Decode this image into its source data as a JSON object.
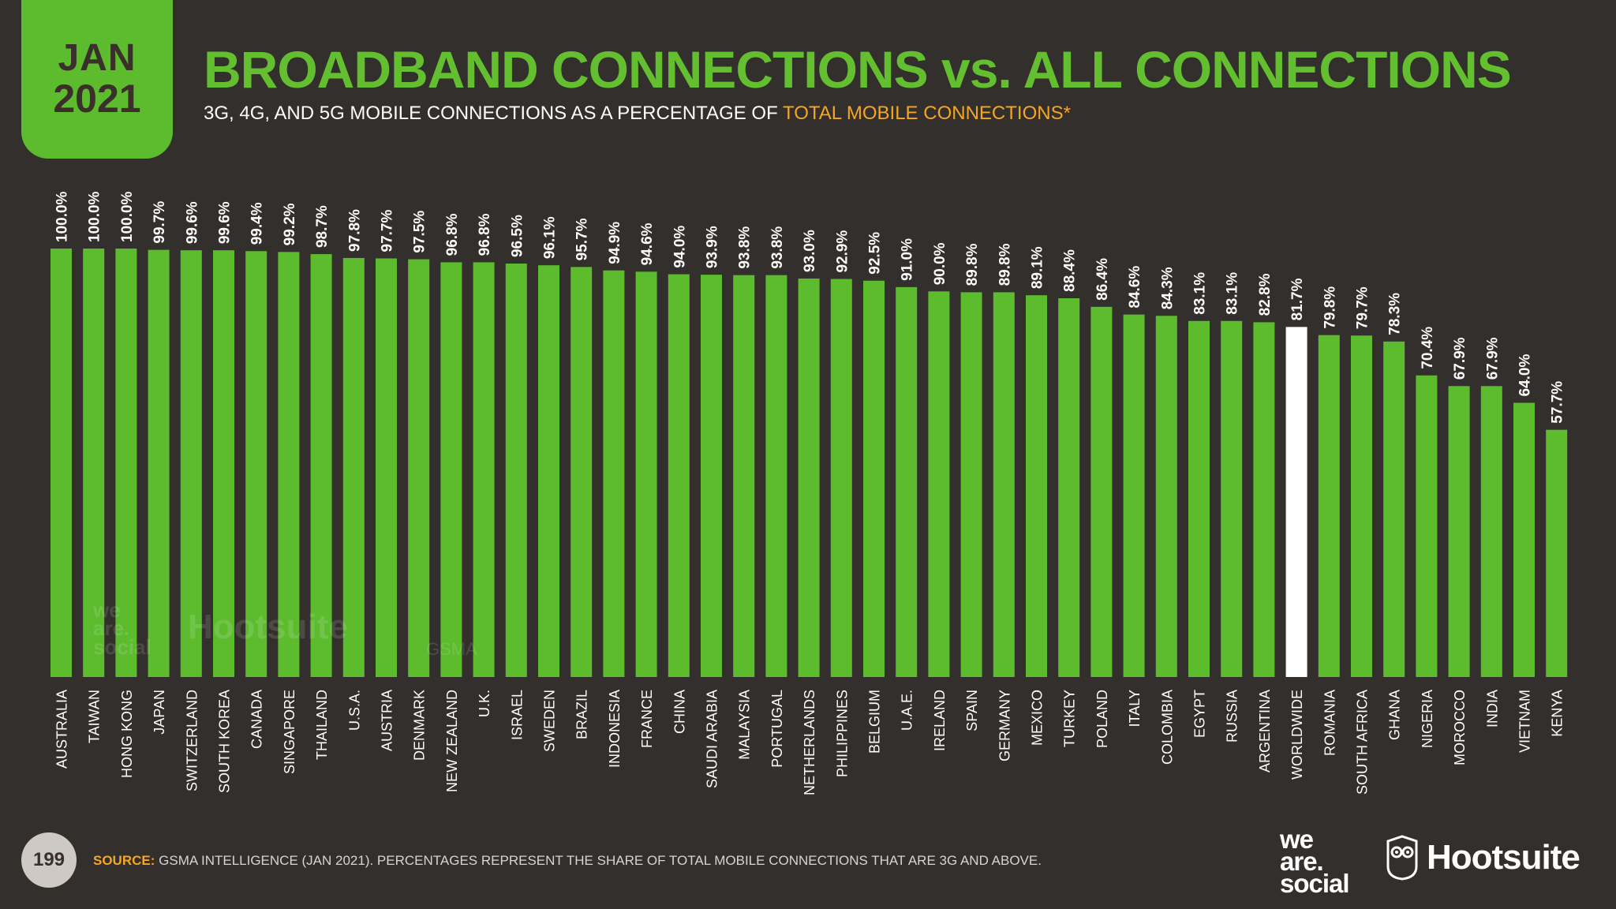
{
  "badge": {
    "month": "JAN",
    "year": "2021"
  },
  "header": {
    "title": "BROADBAND CONNECTIONS vs. ALL CONNECTIONS",
    "subtitle_main": "3G, 4G, AND 5G MOBILE CONNECTIONS AS A PERCENTAGE OF ",
    "subtitle_highlight": "TOTAL MOBILE CONNECTIONS*"
  },
  "footer": {
    "page_number": "199",
    "source_label": "SOURCE:",
    "source_text": " GSMA INTELLIGENCE (JAN 2021). PERCENTAGES REPRESENT THE SHARE OF TOTAL MOBILE CONNECTIONS THAT ARE 3G AND ABOVE."
  },
  "logos": {
    "was_line1": "we",
    "was_line2": "are.",
    "was_line3": "social",
    "hootsuite": "Hootsuite",
    "gsma": "GSMA"
  },
  "colors": {
    "background": "#332f2c",
    "bar": "#5dbb2e",
    "highlight_bar": "#ffffff",
    "title": "#63bf30",
    "accent": "#f5a623",
    "text": "#ffffff"
  },
  "chart_data": {
    "type": "bar",
    "categories": [
      "AUSTRALIA",
      "TAIWAN",
      "HONG KONG",
      "JAPAN",
      "SWITZERLAND",
      "SOUTH KOREA",
      "CANADA",
      "SINGAPORE",
      "THAILAND",
      "U.S.A.",
      "AUSTRIA",
      "DENMARK",
      "NEW ZEALAND",
      "U.K.",
      "ISRAEL",
      "SWEDEN",
      "BRAZIL",
      "INDONESIA",
      "FRANCE",
      "CHINA",
      "SAUDI ARABIA",
      "MALAYSIA",
      "PORTUGAL",
      "NETHERLANDS",
      "PHILIPPINES",
      "BELGIUM",
      "U.A.E.",
      "IRELAND",
      "SPAIN",
      "GERMANY",
      "MEXICO",
      "TURKEY",
      "POLAND",
      "ITALY",
      "COLOMBIA",
      "EGYPT",
      "RUSSIA",
      "ARGENTINA",
      "WORLDWIDE",
      "ROMANIA",
      "SOUTH AFRICA",
      "GHANA",
      "NIGERIA",
      "MOROCCO",
      "INDIA",
      "VIETNAM",
      "KENYA"
    ],
    "values": [
      100.0,
      100.0,
      100.0,
      99.7,
      99.6,
      99.6,
      99.4,
      99.2,
      98.7,
      97.8,
      97.7,
      97.5,
      96.8,
      96.8,
      96.5,
      96.1,
      95.7,
      94.9,
      94.6,
      94.0,
      93.9,
      93.8,
      93.8,
      93.0,
      92.9,
      92.5,
      91.0,
      90.0,
      89.8,
      89.8,
      89.1,
      88.4,
      86.4,
      84.6,
      84.3,
      83.1,
      83.1,
      82.8,
      81.7,
      79.8,
      79.7,
      78.3,
      70.4,
      67.9,
      67.9,
      64.0,
      57.7
    ],
    "labels": [
      "100.0%",
      "100.0%",
      "100.0%",
      "99.7%",
      "99.6%",
      "99.6%",
      "99.4%",
      "99.2%",
      "98.7%",
      "97.8%",
      "97.7%",
      "97.5%",
      "96.8%",
      "96.8%",
      "96.5%",
      "96.1%",
      "95.7%",
      "94.9%",
      "94.6%",
      "94.0%",
      "93.9%",
      "93.8%",
      "93.8%",
      "93.0%",
      "92.9%",
      "92.5%",
      "91.0%",
      "90.0%",
      "89.8%",
      "89.8%",
      "89.1%",
      "88.4%",
      "86.4%",
      "84.6%",
      "84.3%",
      "83.1%",
      "83.1%",
      "82.8%",
      "81.7%",
      "79.8%",
      "79.7%",
      "78.3%",
      "70.4%",
      "67.9%",
      "67.9%",
      "64.0%",
      "57.7%"
    ],
    "highlight": "WORLDWIDE",
    "ylim": [
      0,
      100
    ],
    "grid": false,
    "legend": "none"
  }
}
